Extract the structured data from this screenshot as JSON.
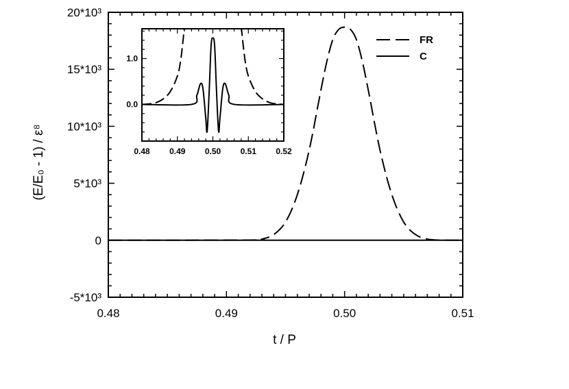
{
  "chart_data": [
    {
      "type": "line",
      "xlabel": "t / P",
      "ylabel": "(E/E₀ - 1) / ε⁸",
      "xlim": [
        0.48,
        0.51
      ],
      "ylim": [
        -5000,
        20000
      ],
      "x_ticks": [
        0.48,
        0.49,
        0.5,
        0.51
      ],
      "x_tick_labels": [
        "0.48",
        "0.49",
        "0.50",
        "0.51"
      ],
      "y_ticks": [
        -5000,
        0,
        5000,
        10000,
        15000,
        20000
      ],
      "y_tick_labels": [
        "-5*10³",
        "0",
        "5*10³",
        "10*10³",
        "15*10³",
        "20*10³"
      ],
      "legend": {
        "position": "top-right"
      },
      "series": [
        {
          "name": "FR",
          "style": "dashed",
          "x": [
            0.48,
            0.492,
            0.493,
            0.494,
            0.495,
            0.496,
            0.497,
            0.498,
            0.4985,
            0.499,
            0.4995,
            0.5,
            0.5005,
            0.501,
            0.5015,
            0.502,
            0.503,
            0.504,
            0.505,
            0.506,
            0.507,
            0.508,
            0.51
          ],
          "y": [
            0,
            20,
            100,
            500,
            1600,
            4000,
            7900,
            13200,
            15700,
            17600,
            18500,
            18700,
            18500,
            17600,
            15700,
            13200,
            7900,
            4000,
            1600,
            500,
            100,
            20,
            0
          ]
        },
        {
          "name": "C",
          "style": "solid",
          "x": [
            0.48,
            0.51
          ],
          "y": [
            0,
            0
          ]
        }
      ]
    },
    {
      "type": "line",
      "role": "inset",
      "xlim": [
        0.48,
        0.52
      ],
      "ylim": [
        -0.8,
        1.65
      ],
      "x_ticks": [
        0.48,
        0.49,
        0.5,
        0.51,
        0.52
      ],
      "x_tick_labels": [
        "0.48",
        "0.49",
        "0.50",
        "0.51",
        "0.52"
      ],
      "y_ticks": [
        0.0,
        1.0
      ],
      "y_tick_labels": [
        "0.0",
        "1.0"
      ],
      "series": [
        {
          "name": "FR",
          "style": "dashed",
          "x": [
            0.48,
            0.482,
            0.484,
            0.486,
            0.488,
            0.49,
            0.491,
            0.492,
            0.508,
            0.509,
            0.51,
            0.512,
            0.514,
            0.516,
            0.518,
            0.52
          ],
          "y": [
            0.0,
            0.01,
            0.04,
            0.12,
            0.28,
            0.62,
            1.0,
            1.7,
            1.7,
            1.0,
            0.62,
            0.28,
            0.12,
            0.04,
            0.01,
            0.0
          ]
        },
        {
          "name": "C",
          "style": "solid",
          "x": [
            0.48,
            0.494,
            0.4955,
            0.4965,
            0.4972,
            0.498,
            0.4984,
            0.499,
            0.4995,
            0.5,
            0.5005,
            0.501,
            0.5016,
            0.502,
            0.5028,
            0.5035,
            0.5045,
            0.506,
            0.52
          ],
          "y": [
            0.0,
            0.0,
            0.2,
            0.45,
            0.35,
            -0.3,
            -0.58,
            0.35,
            1.28,
            1.45,
            1.28,
            0.35,
            -0.58,
            -0.3,
            0.35,
            0.45,
            0.2,
            0.0,
            0.0
          ]
        }
      ]
    }
  ]
}
